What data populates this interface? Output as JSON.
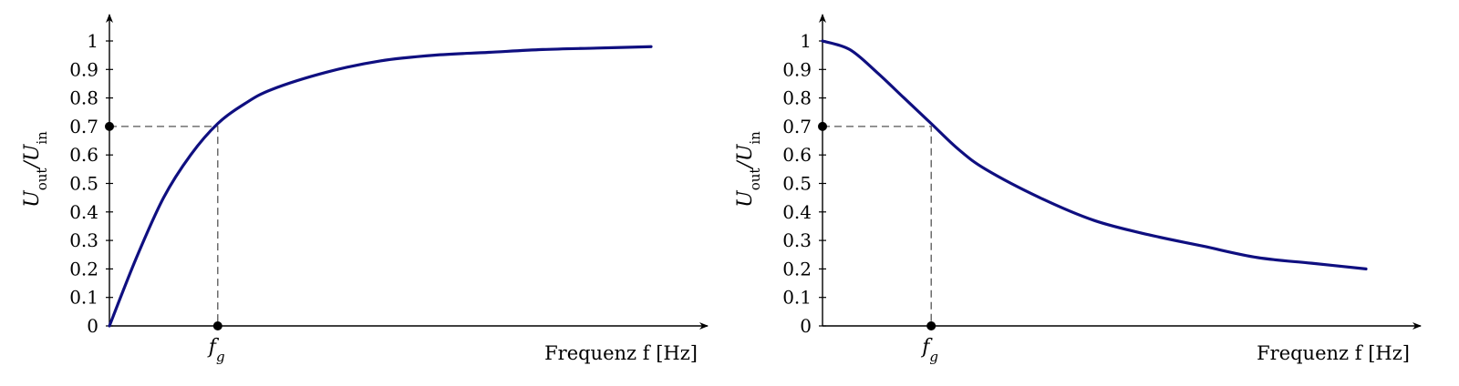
{
  "chart_data": [
    {
      "type": "line",
      "title": "",
      "xlabel": "Frequenz f [Hz]",
      "ylabel": "U_out/U_in",
      "ylabel_main": "U",
      "ylabel_sub1": "out",
      "ylabel_sep": "/U",
      "ylabel_sub2": "in",
      "ylim": [
        0,
        1
      ],
      "y_ticks": [
        "0",
        "0.1",
        "0.2",
        "0.3",
        "0.4",
        "0.5",
        "0.6",
        "0.7",
        "0.8",
        "0.9",
        "1"
      ],
      "x_ticks": [],
      "grid": false,
      "series": [
        {
          "color": "#0f0f80",
          "x": [
            0,
            0.25,
            0.5,
            0.75,
            1,
            1.25,
            1.5,
            2,
            2.5,
            3,
            3.5,
            4,
            4.5,
            5
          ],
          "values": [
            0,
            0.24,
            0.45,
            0.6,
            0.71,
            0.78,
            0.83,
            0.89,
            0.93,
            0.95,
            0.96,
            0.97,
            0.975,
            0.98
          ]
        }
      ],
      "annotations": [
        {
          "label": "f",
          "sub": "g",
          "x": 1,
          "y": 0.7,
          "note": "cutoff frequency marker"
        }
      ]
    },
    {
      "type": "line",
      "title": "",
      "xlabel": "Frequenz f [Hz]",
      "ylabel": "U_out/U_in",
      "ylabel_main": "U",
      "ylabel_sub1": "out",
      "ylabel_sep": "/U",
      "ylabel_sub2": "in",
      "ylim": [
        0,
        1
      ],
      "y_ticks": [
        "0",
        "0.1",
        "0.2",
        "0.3",
        "0.4",
        "0.5",
        "0.6",
        "0.7",
        "0.8",
        "0.9",
        "1"
      ],
      "x_ticks": [],
      "grid": false,
      "series": [
        {
          "color": "#0f0f80",
          "x": [
            0,
            0.25,
            0.5,
            0.75,
            1,
            1.25,
            1.5,
            2,
            2.5,
            3,
            3.5,
            4,
            4.5,
            5
          ],
          "values": [
            1,
            0.97,
            0.89,
            0.8,
            0.71,
            0.62,
            0.55,
            0.45,
            0.37,
            0.32,
            0.28,
            0.24,
            0.22,
            0.2
          ]
        }
      ],
      "annotations": [
        {
          "label": "f",
          "sub": "g",
          "x": 1,
          "y": 0.7,
          "note": "cutoff frequency marker"
        }
      ]
    }
  ]
}
